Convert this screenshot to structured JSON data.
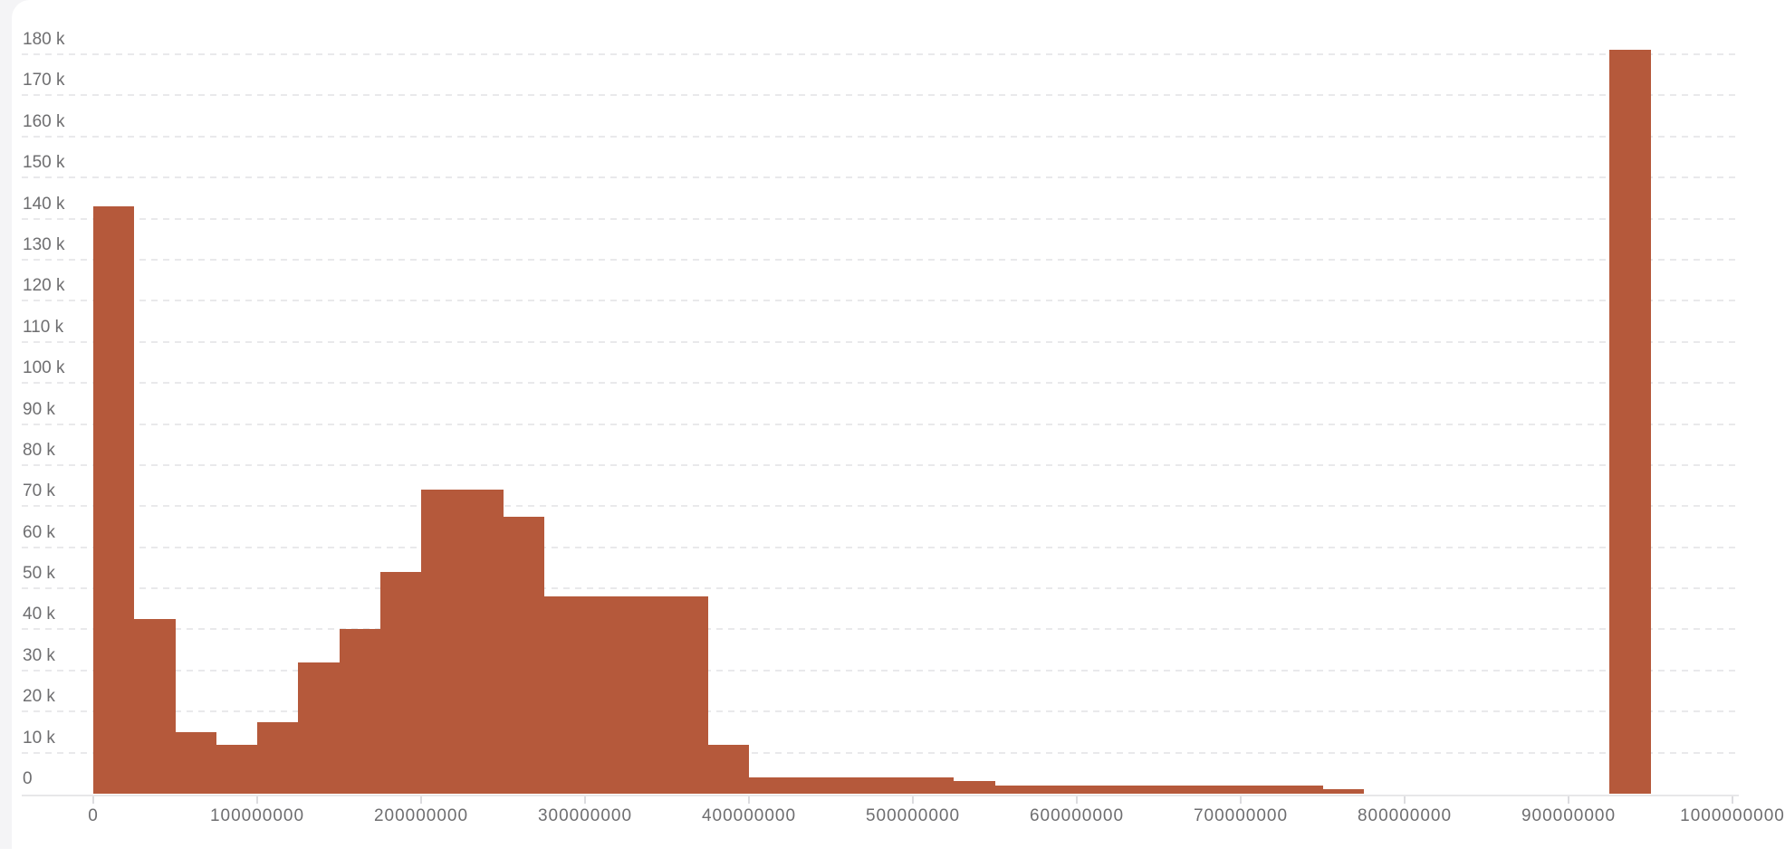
{
  "page": {
    "background_color": "#f4f4f6",
    "card_background_color": "#ffffff"
  },
  "chart_data": {
    "type": "bar",
    "subtype": "histogram",
    "title": "",
    "xlabel": "",
    "ylabel": "",
    "legend": "none",
    "grid": "horizontal-dashed",
    "bar_color": "#b5593b",
    "gridline_color": "#e9e9eb",
    "axis_line_color": "#e7e7e9",
    "tick_mark_color": "#dcdcdf",
    "label_color": "#6e6e70",
    "x_axis": {
      "min": 0,
      "max": 1000000000,
      "tick_step": 100000000,
      "tick_values": [
        0,
        100000000,
        200000000,
        300000000,
        400000000,
        500000000,
        600000000,
        700000000,
        800000000,
        900000000,
        1000000000
      ],
      "tick_labels": [
        "0",
        "100000000",
        "200000000",
        "300000000",
        "400000000",
        "500000000",
        "600000000",
        "700000000",
        "800000000",
        "900000000",
        "1000000000"
      ]
    },
    "y_axis": {
      "min": 0,
      "max": 180000,
      "tick_step": 10000,
      "tick_values": [
        0,
        10000,
        20000,
        30000,
        40000,
        50000,
        60000,
        70000,
        80000,
        90000,
        100000,
        110000,
        120000,
        130000,
        140000,
        150000,
        160000,
        170000,
        180000
      ],
      "tick_labels": [
        "0",
        "10 k",
        "20 k",
        "30 k",
        "40 k",
        "50 k",
        "60 k",
        "70 k",
        "80 k",
        "90 k",
        "100 k",
        "110 k",
        "120 k",
        "130 k",
        "140 k",
        "150 k",
        "160 k",
        "170 k",
        "180 k"
      ]
    },
    "bin_width": 25000000,
    "bins": [
      {
        "start": 0,
        "end": 25000000,
        "count": 143000
      },
      {
        "start": 25000000,
        "end": 50000000,
        "count": 42500
      },
      {
        "start": 50000000,
        "end": 75000000,
        "count": 15000
      },
      {
        "start": 75000000,
        "end": 100000000,
        "count": 12000
      },
      {
        "start": 100000000,
        "end": 125000000,
        "count": 17500
      },
      {
        "start": 125000000,
        "end": 150000000,
        "count": 32000
      },
      {
        "start": 150000000,
        "end": 175000000,
        "count": 40000
      },
      {
        "start": 175000000,
        "end": 200000000,
        "count": 54000
      },
      {
        "start": 200000000,
        "end": 225000000,
        "count": 74000
      },
      {
        "start": 225000000,
        "end": 250000000,
        "count": 74000
      },
      {
        "start": 250000000,
        "end": 275000000,
        "count": 67500
      },
      {
        "start": 275000000,
        "end": 300000000,
        "count": 48000
      },
      {
        "start": 300000000,
        "end": 325000000,
        "count": 48000
      },
      {
        "start": 325000000,
        "end": 350000000,
        "count": 48000
      },
      {
        "start": 350000000,
        "end": 375000000,
        "count": 48000
      },
      {
        "start": 375000000,
        "end": 400000000,
        "count": 12000
      },
      {
        "start": 400000000,
        "end": 425000000,
        "count": 4000
      },
      {
        "start": 425000000,
        "end": 450000000,
        "count": 4000
      },
      {
        "start": 450000000,
        "end": 475000000,
        "count": 4000
      },
      {
        "start": 475000000,
        "end": 500000000,
        "count": 4000
      },
      {
        "start": 500000000,
        "end": 525000000,
        "count": 4000
      },
      {
        "start": 525000000,
        "end": 550000000,
        "count": 3000
      },
      {
        "start": 550000000,
        "end": 575000000,
        "count": 2000
      },
      {
        "start": 575000000,
        "end": 600000000,
        "count": 2000
      },
      {
        "start": 600000000,
        "end": 625000000,
        "count": 2000
      },
      {
        "start": 625000000,
        "end": 650000000,
        "count": 2000
      },
      {
        "start": 650000000,
        "end": 675000000,
        "count": 2000
      },
      {
        "start": 675000000,
        "end": 700000000,
        "count": 2000
      },
      {
        "start": 700000000,
        "end": 725000000,
        "count": 2000
      },
      {
        "start": 725000000,
        "end": 750000000,
        "count": 2000
      },
      {
        "start": 750000000,
        "end": 775000000,
        "count": 1000
      },
      {
        "start": 775000000,
        "end": 800000000,
        "count": 0
      },
      {
        "start": 800000000,
        "end": 825000000,
        "count": 0
      },
      {
        "start": 825000000,
        "end": 850000000,
        "count": 0
      },
      {
        "start": 850000000,
        "end": 875000000,
        "count": 0
      },
      {
        "start": 875000000,
        "end": 900000000,
        "count": 0
      },
      {
        "start": 900000000,
        "end": 925000000,
        "count": 0
      },
      {
        "start": 925000000,
        "end": 950000000,
        "count": 181000
      },
      {
        "start": 950000000,
        "end": 975000000,
        "count": 0
      },
      {
        "start": 975000000,
        "end": 1000000000,
        "count": 0
      }
    ]
  }
}
